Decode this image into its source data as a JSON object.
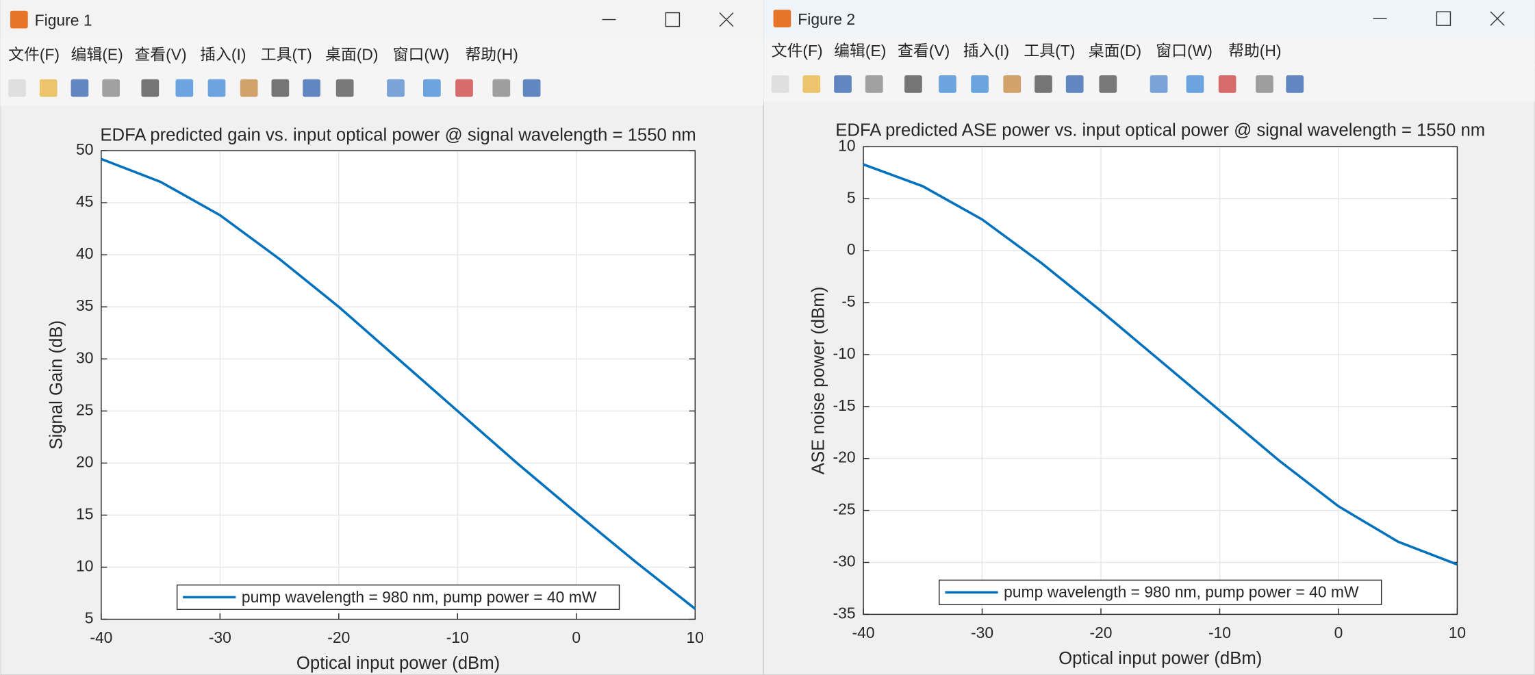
{
  "windows": [
    {
      "title": "Figure 1",
      "menu": [
        "文件(F)",
        "编辑(E)",
        "查看(V)",
        "插入(I)",
        "工具(T)",
        "桌面(D)",
        "窗口(W)",
        "帮助(H)"
      ]
    },
    {
      "title": "Figure 2",
      "menu": [
        "文件(F)",
        "编辑(E)",
        "查看(V)",
        "插入(I)",
        "工具(T)",
        "桌面(D)",
        "窗口(W)",
        "帮助(H)"
      ]
    }
  ],
  "chart_data": [
    {
      "type": "line",
      "title": "EDFA predicted gain vs. input optical power @ signal wavelength = 1550 nm",
      "x_label": "Optical input power (dBm)",
      "y_label": "Signal Gain (dB)",
      "x": [
        -40,
        -35,
        -30,
        -25,
        -20,
        -15,
        -10,
        -5,
        0,
        5,
        10
      ],
      "series": [
        {
          "name": "pump wavelength = 980 nm, pump power = 40 mW",
          "color": "#0072bd",
          "values": [
            49.2,
            47.0,
            43.8,
            39.6,
            35.0,
            30.0,
            25.0,
            20.0,
            15.2,
            10.5,
            6.0
          ]
        }
      ],
      "xlim": [
        -40,
        10
      ],
      "xticks": [
        -40,
        -30,
        -20,
        -10,
        0,
        10
      ],
      "ylim": [
        5,
        50
      ],
      "yticks": [
        5,
        10,
        15,
        20,
        25,
        30,
        35,
        40,
        45,
        50
      ],
      "grid": true,
      "legend_position": "south"
    },
    {
      "type": "line",
      "title": "EDFA predicted ASE power vs. input optical power @ signal wavelength = 1550 nm",
      "x_label": "Optical input power (dBm)",
      "y_label": "ASE noise power (dBm)",
      "x": [
        -40,
        -35,
        -30,
        -25,
        -20,
        -15,
        -10,
        -5,
        0,
        5,
        10
      ],
      "series": [
        {
          "name": "pump wavelength = 980 nm, pump power = 40 mW",
          "color": "#0072bd",
          "values": [
            8.3,
            6.2,
            3.0,
            -1.2,
            -5.8,
            -10.6,
            -15.4,
            -20.2,
            -24.6,
            -28.0,
            -30.2
          ]
        }
      ],
      "xlim": [
        -40,
        10
      ],
      "xticks": [
        -40,
        -30,
        -20,
        -10,
        0,
        10
      ],
      "ylim": [
        -35,
        10
      ],
      "yticks": [
        -35,
        -30,
        -25,
        -20,
        -15,
        -10,
        -5,
        0,
        5,
        10
      ],
      "grid": true,
      "legend_position": "south"
    }
  ]
}
